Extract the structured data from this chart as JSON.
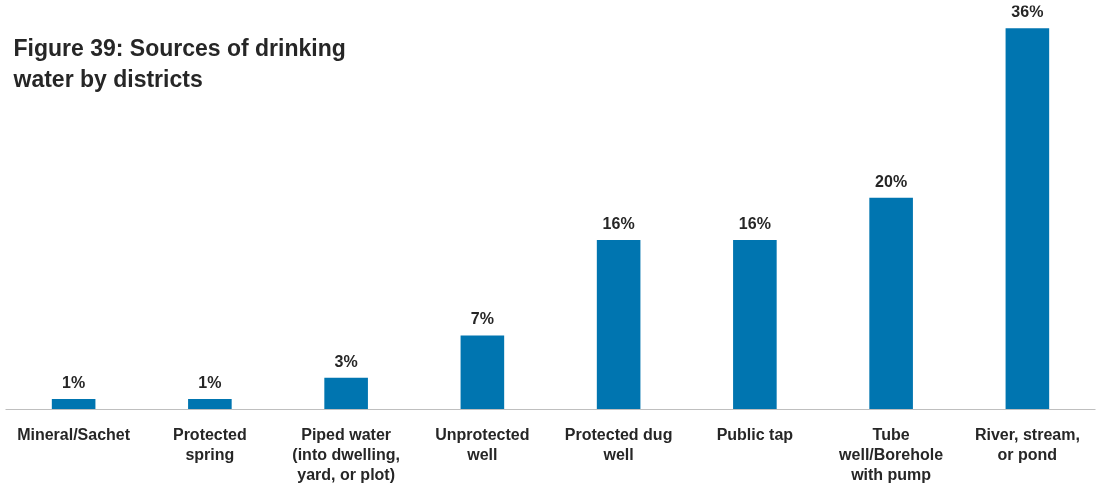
{
  "chart_data": {
    "type": "bar",
    "title": "Figure 39: Sources of drinking water by districts",
    "categories": [
      "Mineral/Sachet",
      "Protected spring",
      "Piped water (into dwelling, yard, or plot)",
      "Unprotected well",
      "Protected dug well",
      "Public tap",
      "Tube well/Borehole with pump",
      "River, stream, or pond"
    ],
    "values": [
      1,
      1,
      3,
      7,
      16,
      16,
      20,
      36
    ],
    "value_labels": [
      "1%",
      "1%",
      "3%",
      "7%",
      "16%",
      "16%",
      "20%",
      "36%"
    ],
    "color": "#0075b0",
    "grid": false
  }
}
